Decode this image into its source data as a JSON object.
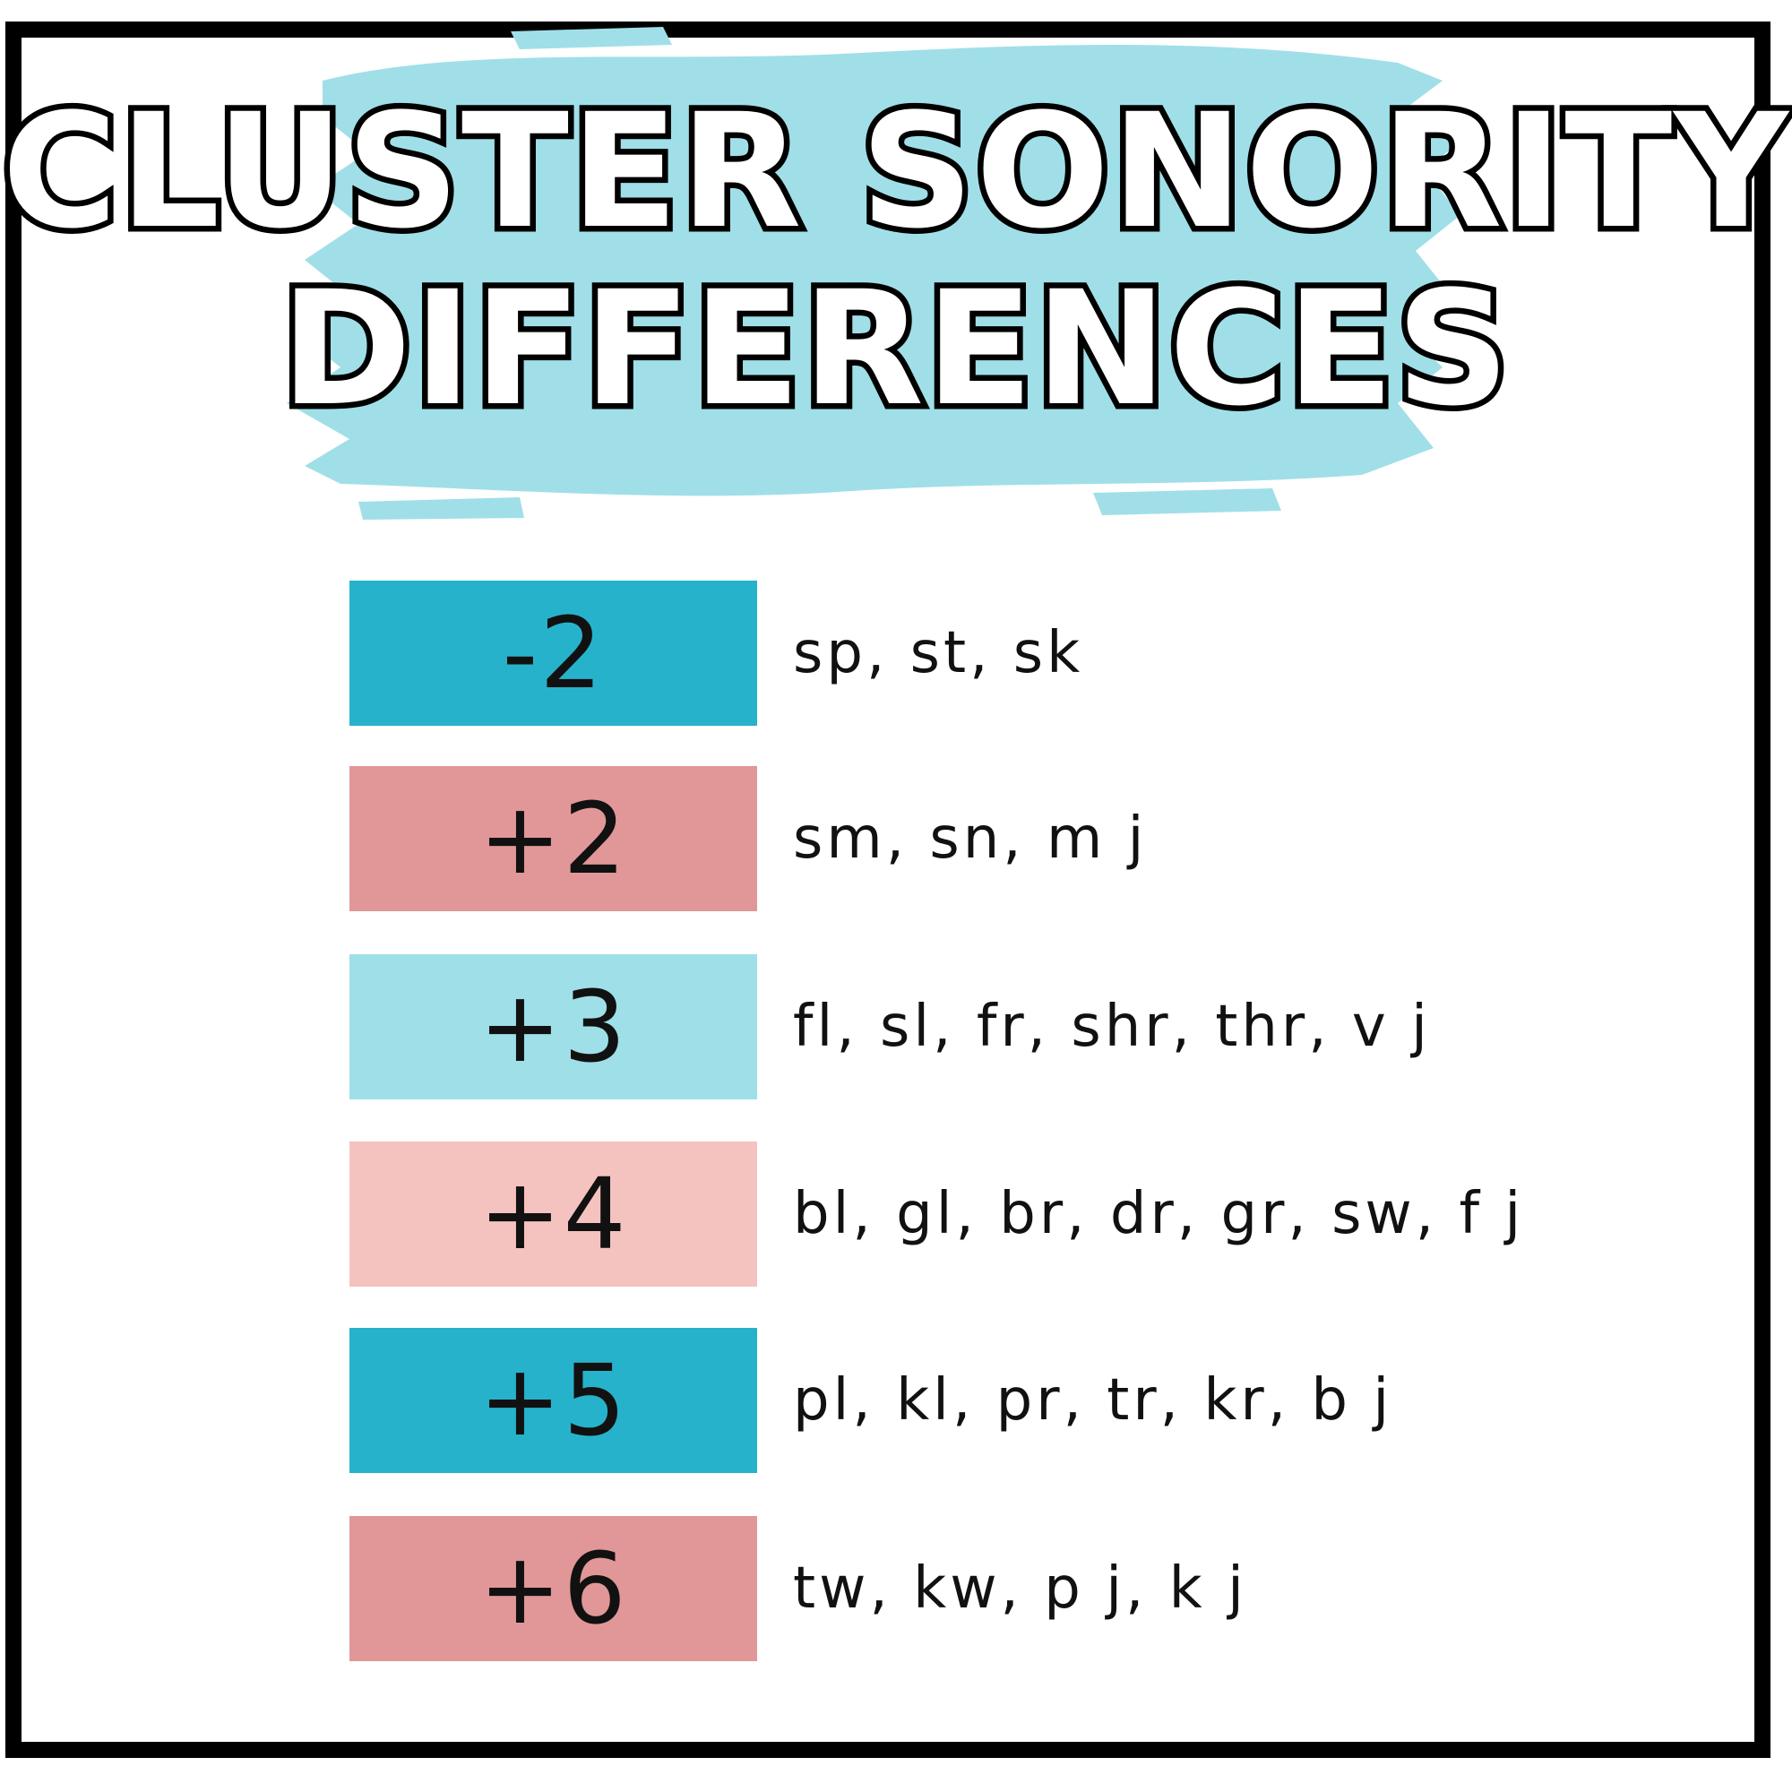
{
  "title": {
    "line1": "CLUSTER SONORITY",
    "line2": "DIFFERENCES"
  },
  "colors": {
    "brush": "#a0dfe8",
    "teal": "#27b2cb",
    "salmon": "#e19797",
    "light_blue": "#9fdfe7",
    "light_pink": "#f5c3bf",
    "frame": "#000000"
  },
  "rows": [
    {
      "value": "-2",
      "clusters": "sp, st, sk",
      "color": "#27b2cb"
    },
    {
      "value": "+2",
      "clusters": "sm, sn, m j",
      "color": "#e19797"
    },
    {
      "value": "+3",
      "clusters": "fl, sl, fr, shr, thr, v j",
      "color": "#9fdfe7"
    },
    {
      "value": "+4",
      "clusters": "bl, gl, br, dr, gr, sw, f j",
      "color": "#f5c3bf"
    },
    {
      "value": "+5",
      "clusters": "pl, kl, pr, tr, kr, b j",
      "color": "#27b2cb"
    },
    {
      "value": "+6",
      "clusters": "tw, kw, p j, k j",
      "color": "#e19797"
    }
  ]
}
